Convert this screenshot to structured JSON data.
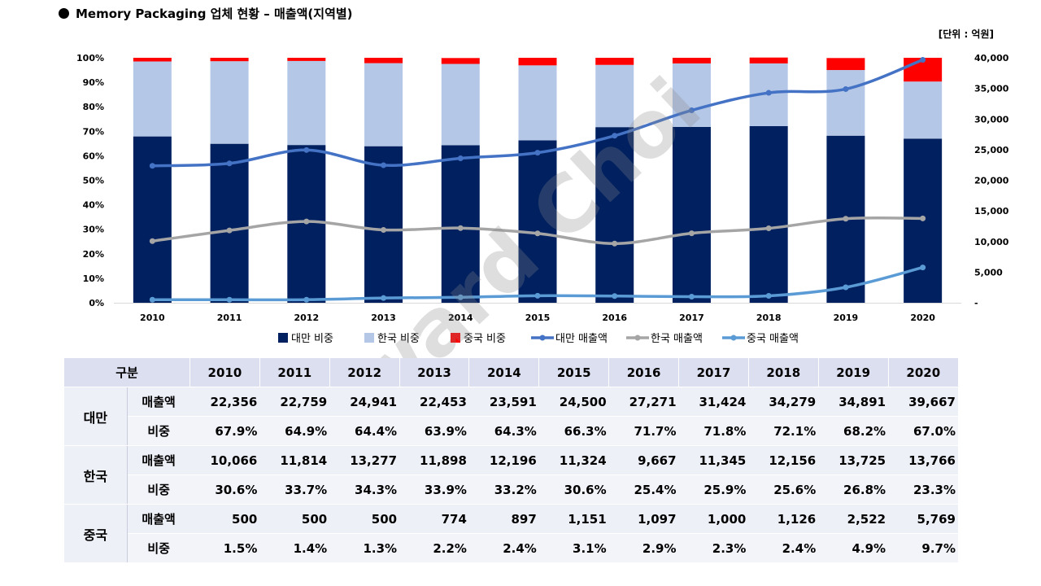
{
  "header": {
    "title": "Memory Packaging 업체 현황 – 매출액(지역별)",
    "unit": "[단위 : 억원]"
  },
  "watermark": "Edward Choi",
  "colors": {
    "taiwan_share": "#002060",
    "korea_share": "#b4c7e7",
    "china_share": "#ff0000",
    "taiwan_sales": "#4472c4",
    "korea_sales": "#a5a5a5",
    "china_sales": "#5b9bd5"
  },
  "chart_data": {
    "type": "bar",
    "stacked": true,
    "categories": [
      "2010",
      "2011",
      "2012",
      "2013",
      "2014",
      "2015",
      "2016",
      "2017",
      "2018",
      "2019",
      "2020"
    ],
    "left_axis": {
      "ylim": [
        0,
        100
      ],
      "ticks": [
        "0%",
        "10%",
        "20%",
        "30%",
        "40%",
        "50%",
        "60%",
        "70%",
        "80%",
        "90%",
        "100%"
      ]
    },
    "right_axis": {
      "ylim": [
        0,
        40000
      ],
      "ticks": [
        "-",
        "5,000",
        "10,000",
        "15,000",
        "20,000",
        "25,000",
        "30,000",
        "35,000",
        "40,000"
      ]
    },
    "series": [
      {
        "name": "대만 비중",
        "kind": "bar",
        "axis": "left",
        "values": [
          67.9,
          64.9,
          64.4,
          63.9,
          64.3,
          66.3,
          71.7,
          71.8,
          72.1,
          68.2,
          67.0
        ]
      },
      {
        "name": "한국 비중",
        "kind": "bar",
        "axis": "left",
        "values": [
          30.6,
          33.7,
          34.3,
          33.9,
          33.2,
          30.6,
          25.4,
          25.9,
          25.6,
          26.8,
          23.3
        ]
      },
      {
        "name": "중국 비중",
        "kind": "bar",
        "axis": "left",
        "values": [
          1.5,
          1.4,
          1.3,
          2.2,
          2.4,
          3.1,
          2.9,
          2.3,
          2.4,
          4.9,
          9.7
        ]
      },
      {
        "name": "대만 매출액",
        "kind": "line",
        "axis": "right",
        "values": [
          22356,
          22759,
          24941,
          22453,
          23591,
          24500,
          27271,
          31424,
          34279,
          34891,
          39667
        ]
      },
      {
        "name": "한국 매출액",
        "kind": "line",
        "axis": "right",
        "values": [
          10066,
          11814,
          13277,
          11898,
          12196,
          11324,
          9667,
          11345,
          12156,
          13725,
          13766
        ]
      },
      {
        "name": "중국 매출액",
        "kind": "line",
        "axis": "right",
        "values": [
          500,
          500,
          500,
          774,
          897,
          1151,
          1097,
          1000,
          1126,
          2522,
          5769
        ]
      }
    ],
    "legend_position": "bottom"
  },
  "table": {
    "corner_label": "구분",
    "years": [
      "2010",
      "2011",
      "2012",
      "2013",
      "2014",
      "2015",
      "2016",
      "2017",
      "2018",
      "2019",
      "2020"
    ],
    "regions": [
      {
        "name": "대만",
        "rows": [
          {
            "metric": "매출액",
            "values": [
              "22,356",
              "22,759",
              "24,941",
              "22,453",
              "23,591",
              "24,500",
              "27,271",
              "31,424",
              "34,279",
              "34,891",
              "39,667"
            ]
          },
          {
            "metric": "비중",
            "values": [
              "67.9%",
              "64.9%",
              "64.4%",
              "63.9%",
              "64.3%",
              "66.3%",
              "71.7%",
              "71.8%",
              "72.1%",
              "68.2%",
              "67.0%"
            ]
          }
        ]
      },
      {
        "name": "한국",
        "rows": [
          {
            "metric": "매출액",
            "values": [
              "10,066",
              "11,814",
              "13,277",
              "11,898",
              "12,196",
              "11,324",
              "9,667",
              "11,345",
              "12,156",
              "13,725",
              "13,766"
            ]
          },
          {
            "metric": "비중",
            "values": [
              "30.6%",
              "33.7%",
              "34.3%",
              "33.9%",
              "33.2%",
              "30.6%",
              "25.4%",
              "25.9%",
              "25.6%",
              "26.8%",
              "23.3%"
            ]
          }
        ]
      },
      {
        "name": "중국",
        "rows": [
          {
            "metric": "매출액",
            "values": [
              "500",
              "500",
              "500",
              "774",
              "897",
              "1,151",
              "1,097",
              "1,000",
              "1,126",
              "2,522",
              "5,769"
            ]
          },
          {
            "metric": "비중",
            "values": [
              "1.5%",
              "1.4%",
              "1.3%",
              "2.2%",
              "2.4%",
              "3.1%",
              "2.9%",
              "2.3%",
              "2.4%",
              "4.9%",
              "9.7%"
            ]
          }
        ]
      }
    ]
  }
}
